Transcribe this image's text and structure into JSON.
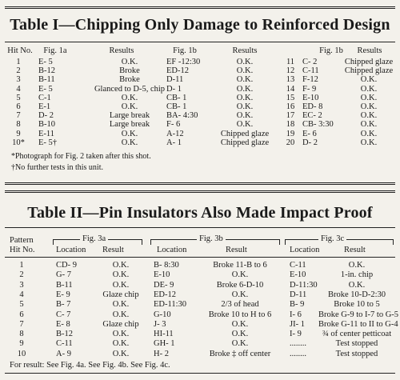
{
  "table1": {
    "title": "Table I—Chipping Only Damage to Reinforced Design",
    "headers": [
      "Hit No.",
      "Fig. 1a",
      "Results",
      "Fig. 1b",
      "Results",
      "Fig. 1b",
      "Results"
    ],
    "rows_left": [
      [
        "1",
        "E- 5",
        "O.K.",
        "EF -12:30",
        "O.K."
      ],
      [
        "2",
        "B-12",
        "Broke",
        "ED-12",
        "O.K."
      ],
      [
        "3",
        "B-11",
        "Broke",
        "D-11",
        "O.K."
      ],
      [
        "4",
        "E- 5",
        "Glanced to D-5, chip",
        "D- 1",
        "O.K."
      ],
      [
        "5",
        "C-1",
        "O.K.",
        "CB- 1",
        "O.K."
      ],
      [
        "6",
        "E-1",
        "O.K.",
        "CB- 1",
        "O.K."
      ],
      [
        "7",
        "D- 2",
        "Large break",
        "BA- 4:30",
        "O.K."
      ],
      [
        "8",
        "B-10",
        "Large break",
        "F- 6",
        "O.K."
      ],
      [
        "9",
        "E-11",
        "O.K.",
        "A-12",
        "Chipped glaze"
      ],
      [
        "10*",
        "E- 5†",
        "O.K.",
        "A- 1",
        "Chipped glaze"
      ]
    ],
    "rows_right": [
      [
        "11",
        "C- 2",
        "Chipped glaze"
      ],
      [
        "12",
        "C-11",
        "Chipped glaze"
      ],
      [
        "13",
        "F-12",
        "O.K."
      ],
      [
        "14",
        "F- 9",
        "O.K."
      ],
      [
        "15",
        "E-10",
        "O.K."
      ],
      [
        "16",
        "ED- 8",
        "O.K."
      ],
      [
        "17",
        "EC- 2",
        "O.K."
      ],
      [
        "18",
        "CB- 3:30",
        "O.K."
      ],
      [
        "19",
        "E- 6",
        "O.K."
      ],
      [
        "20",
        "D- 2",
        "O.K."
      ]
    ],
    "footnotes": [
      "*Photograph for Fig. 2 taken after this shot.",
      "†No further tests in this unit."
    ]
  },
  "table2": {
    "title": "Table II—Pin Insulators Also Made Impact Proof",
    "col_pattern": "Pattern",
    "col_hitno": "Hit No.",
    "fig3a": "Fig. 3a",
    "fig3b": "Fig. 3b",
    "fig3c": "Fig. 3c",
    "loc": "Location",
    "res": "Result",
    "rows": [
      [
        "1",
        "CD- 9",
        "O.K.",
        "B- 8:30",
        "Broke 11-B to 6",
        "C-11",
        "O.K."
      ],
      [
        "2",
        "G- 7",
        "O.K.",
        "E-10",
        "O.K.",
        "E-10",
        "1-in. chip"
      ],
      [
        "3",
        "B-11",
        "O.K.",
        "DE- 9",
        "Broke 6-D-10",
        "D-11:30",
        "O.K."
      ],
      [
        "4",
        "E- 9",
        "Glaze chip",
        "ED-12",
        "O.K.",
        "D-11",
        "Broke 10-D-2:30"
      ],
      [
        "5",
        "B- 7",
        "O.K.",
        "ED-11:30",
        "2/3 of head",
        "B- 9",
        "Broke 10 to 5"
      ],
      [
        "6",
        "C- 7",
        "O.K.",
        "G-10",
        "Broke 10 to H to 6",
        "I- 6",
        "Broke G-9 to I-7 to G-5"
      ],
      [
        "7",
        "E- 8",
        "Glaze chip",
        "J- 3",
        "O.K.",
        "JI- 1",
        "Broke G-11 to II to G-4"
      ],
      [
        "8",
        "B-12",
        "O.K.",
        "HI-11",
        "O.K.",
        "I- 9",
        "¾ of center petticoat"
      ],
      [
        "9",
        "C-11",
        "O.K.",
        "GH- 1",
        "O.K.",
        "........",
        "Test stopped"
      ],
      [
        "10",
        "A- 9",
        "O.K.",
        "H- 2",
        "Broke ‡ off center",
        "........",
        "Test stopped"
      ]
    ],
    "for_result": "For result:  See Fig. 4a.   See Fig. 4b.   See Fig. 4c."
  }
}
